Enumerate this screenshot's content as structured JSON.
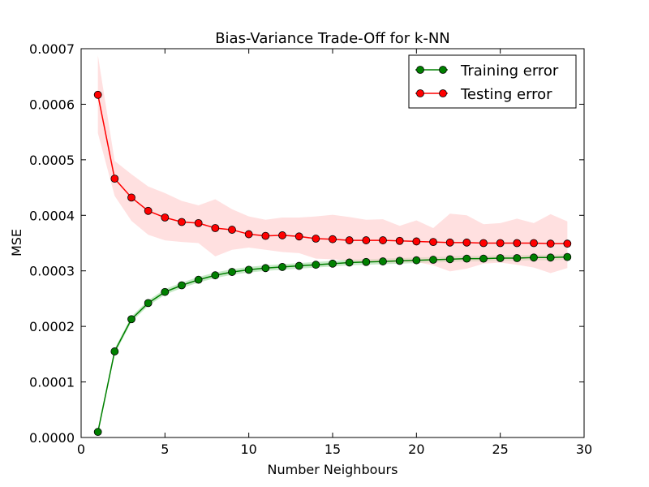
{
  "chart_data": {
    "type": "line",
    "title": "Bias-Variance Trade-Off for k-NN",
    "xlabel": "Number Neighbours",
    "ylabel": "MSE",
    "xlim": [
      0,
      30
    ],
    "ylim": [
      0,
      0.0007
    ],
    "xticks": [
      0,
      5,
      10,
      15,
      20,
      25,
      30
    ],
    "xtick_labels": [
      "0",
      "5",
      "10",
      "15",
      "20",
      "25",
      "30"
    ],
    "yticks": [
      0,
      0.0001,
      0.0002,
      0.0003,
      0.0004,
      0.0005,
      0.0006,
      0.0007
    ],
    "ytick_labels": [
      "0.0000",
      "0.0001",
      "0.0002",
      "0.0003",
      "0.0004",
      "0.0005",
      "0.0006",
      "0.0007"
    ],
    "grid": false,
    "legend_position": "top-right",
    "x": [
      1,
      2,
      3,
      4,
      5,
      6,
      7,
      8,
      9,
      10,
      11,
      12,
      13,
      14,
      15,
      16,
      17,
      18,
      19,
      20,
      21,
      22,
      23,
      24,
      25,
      26,
      27,
      28,
      29
    ],
    "series": [
      {
        "name": "Training error",
        "color": "#008000",
        "band_color": "#90d690",
        "values": [
          1e-05,
          0.000155,
          0.000213,
          0.000242,
          0.000262,
          0.000274,
          0.000284,
          0.000292,
          0.000298,
          0.000302,
          0.000305,
          0.000307,
          0.000309,
          0.000311,
          0.000313,
          0.000315,
          0.000316,
          0.000317,
          0.000318,
          0.000319,
          0.00032,
          0.000321,
          0.000322,
          0.000322,
          0.000323,
          0.000323,
          0.000324,
          0.000324,
          0.000325
        ],
        "band_lower": [
          5e-06,
          0.00015,
          0.000208,
          0.000237,
          0.000257,
          0.000269,
          0.000279,
          0.000287,
          0.000293,
          0.000297,
          0.0003,
          0.000302,
          0.000304,
          0.000306,
          0.000308,
          0.00031,
          0.000311,
          0.000312,
          0.000313,
          0.000314,
          0.000315,
          0.000316,
          0.000317,
          0.000317,
          0.000318,
          0.000318,
          0.000319,
          0.000319,
          0.00032
        ],
        "band_upper": [
          1.5e-05,
          0.00016,
          0.000218,
          0.000247,
          0.000267,
          0.000279,
          0.000289,
          0.000297,
          0.000303,
          0.000307,
          0.00031,
          0.000312,
          0.000314,
          0.000316,
          0.000318,
          0.00032,
          0.000321,
          0.000322,
          0.000323,
          0.000324,
          0.000325,
          0.000326,
          0.000327,
          0.000327,
          0.000328,
          0.000328,
          0.000329,
          0.000329,
          0.00033
        ]
      },
      {
        "name": "Testing error",
        "color": "#ff0000",
        "band_color": "#ffcccc",
        "values": [
          0.000617,
          0.000466,
          0.000432,
          0.000408,
          0.000396,
          0.000388,
          0.000386,
          0.000377,
          0.000374,
          0.000366,
          0.000363,
          0.000364,
          0.000362,
          0.000358,
          0.000357,
          0.000355,
          0.000355,
          0.000355,
          0.000354,
          0.000353,
          0.000352,
          0.000351,
          0.000351,
          0.00035,
          0.00035,
          0.00035,
          0.00035,
          0.000349,
          0.000349
        ],
        "band_lower": [
          0.000548,
          0.000435,
          0.00039,
          0.000365,
          0.000355,
          0.000352,
          0.00035,
          0.000326,
          0.000338,
          0.000342,
          0.000338,
          0.000334,
          0.000332,
          0.000322,
          0.000321,
          0.000318,
          0.000316,
          0.000315,
          0.000315,
          0.000316,
          0.00031,
          0.000299,
          0.000304,
          0.000313,
          0.000315,
          0.000311,
          0.000306,
          0.000296,
          0.000305
        ],
        "band_upper": [
          0.000688,
          0.000498,
          0.000474,
          0.000452,
          0.00044,
          0.000426,
          0.000418,
          0.000429,
          0.000411,
          0.000398,
          0.000392,
          0.000396,
          0.000396,
          0.000398,
          0.000401,
          0.000397,
          0.000392,
          0.000393,
          0.000381,
          0.000391,
          0.000377,
          0.000403,
          0.0004,
          0.000384,
          0.000386,
          0.000394,
          0.000386,
          0.000402,
          0.000389
        ]
      }
    ]
  }
}
